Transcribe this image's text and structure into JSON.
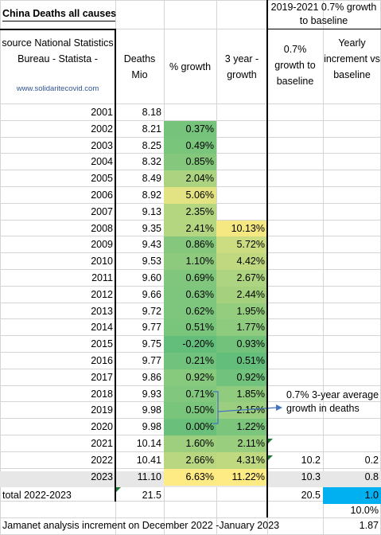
{
  "title": "China Deaths all causes",
  "header_right": "2019-2021 0.7% growth to baseline",
  "source": "source National Statistics Bureau - Statista -",
  "source_url": "www.solidaritecovid.com",
  "col_headers": {
    "deaths": "Deaths Mio",
    "growth": "% growth",
    "three_year": "3 year - growth",
    "baseline": "0.7% growth to baseline",
    "increment": "Yearly increment vs baseline"
  },
  "annotation": "0.7% 3-year average growth in deaths",
  "rows": [
    {
      "year": "2001",
      "deaths": "8.18",
      "growth": "",
      "three": "",
      "base": "",
      "inc": ""
    },
    {
      "year": "2002",
      "deaths": "8.21",
      "growth": "0.37%",
      "three": "",
      "base": "",
      "inc": ""
    },
    {
      "year": "2003",
      "deaths": "8.25",
      "growth": "0.49%",
      "three": "",
      "base": "",
      "inc": ""
    },
    {
      "year": "2004",
      "deaths": "8.32",
      "growth": "0.85%",
      "three": "",
      "base": "",
      "inc": ""
    },
    {
      "year": "2005",
      "deaths": "8.49",
      "growth": "2.04%",
      "three": "",
      "base": "",
      "inc": ""
    },
    {
      "year": "2006",
      "deaths": "8.92",
      "growth": "5.06%",
      "three": "",
      "base": "",
      "inc": ""
    },
    {
      "year": "2007",
      "deaths": "9.13",
      "growth": "2.35%",
      "three": "",
      "base": "",
      "inc": ""
    },
    {
      "year": "2008",
      "deaths": "9.35",
      "growth": "2.41%",
      "three": "10.13%",
      "base": "",
      "inc": ""
    },
    {
      "year": "2009",
      "deaths": "9.43",
      "growth": "0.86%",
      "three": "5.72%",
      "base": "",
      "inc": ""
    },
    {
      "year": "2010",
      "deaths": "9.53",
      "growth": "1.10%",
      "three": "4.42%",
      "base": "",
      "inc": ""
    },
    {
      "year": "2011",
      "deaths": "9.60",
      "growth": "0.69%",
      "three": "2.67%",
      "base": "",
      "inc": ""
    },
    {
      "year": "2012",
      "deaths": "9.66",
      "growth": "0.63%",
      "three": "2.44%",
      "base": "",
      "inc": ""
    },
    {
      "year": "2013",
      "deaths": "9.72",
      "growth": "0.62%",
      "three": "1.95%",
      "base": "",
      "inc": ""
    },
    {
      "year": "2014",
      "deaths": "9.77",
      "growth": "0.51%",
      "three": "1.77%",
      "base": "",
      "inc": ""
    },
    {
      "year": "2015",
      "deaths": "9.75",
      "growth": "-0.20%",
      "three": "0.93%",
      "base": "",
      "inc": ""
    },
    {
      "year": "2016",
      "deaths": "9.77",
      "growth": "0.21%",
      "three": "0.51%",
      "base": "",
      "inc": ""
    },
    {
      "year": "2017",
      "deaths": "9.86",
      "growth": "0.92%",
      "three": "0.92%",
      "base": "",
      "inc": ""
    },
    {
      "year": "2018",
      "deaths": "9.93",
      "growth": "0.71%",
      "three": "1.85%",
      "base": "",
      "inc": ""
    },
    {
      "year": "2019",
      "deaths": "9.98",
      "growth": "0.50%",
      "three": "2.15%",
      "base": "",
      "inc": ""
    },
    {
      "year": "2020",
      "deaths": "9.98",
      "growth": "0.00%",
      "three": "1.22%",
      "base": "",
      "inc": ""
    },
    {
      "year": "2021",
      "deaths": "10.14",
      "growth": "1.60%",
      "three": "2.11%",
      "base": "",
      "inc": ""
    },
    {
      "year": "2022",
      "deaths": "10.41",
      "growth": "2.66%",
      "three": "4.31%",
      "base": "10.2",
      "inc": "0.2"
    },
    {
      "year": "2023",
      "deaths": "11.10",
      "growth": "6.63%",
      "three": "11.22%",
      "base": "10.3",
      "inc": "0.8"
    }
  ],
  "total": {
    "label": "total 2022-2023",
    "deaths": "21.5",
    "base": "20.5",
    "inc": "1.0",
    "pct": "10.0%"
  },
  "footer": {
    "label": "Jamanet analysis increment on December 2022 -January 2023",
    "value": "1.87"
  },
  "colors": {
    "highlight": "#00b0f0",
    "shade": "#e7e7e7",
    "green_dark": "#63be7b",
    "yellow": "#ffeb84",
    "arrow": "#4472c4"
  }
}
